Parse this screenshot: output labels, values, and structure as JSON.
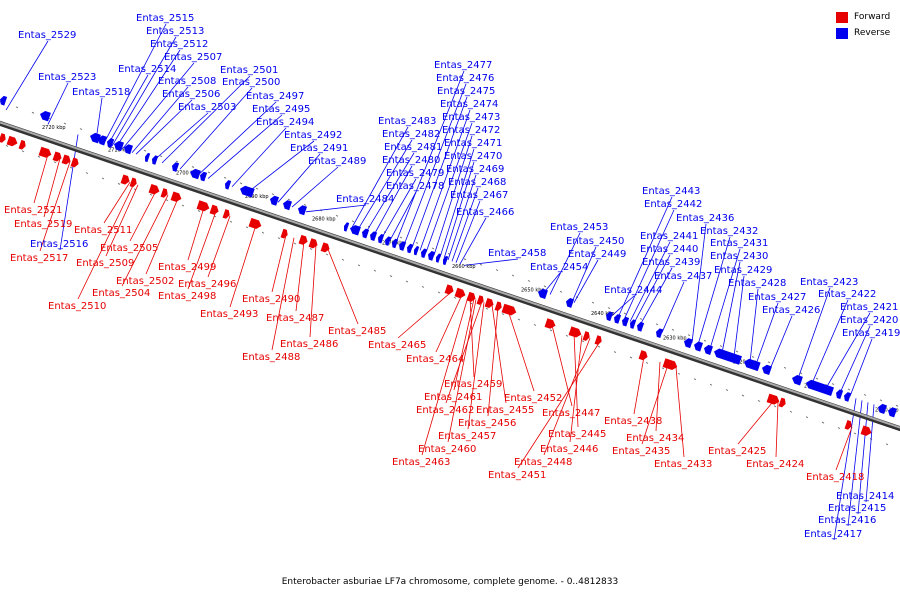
{
  "legend": {
    "forward_label": "Forward",
    "reverse_label": "Reverse",
    "forward_color": "#e60000",
    "reverse_color": "#0000ee"
  },
  "caption": "Enterobacter asburiae LF7a chromosome, complete genome. - 0..4812833",
  "backbone_color": "#777777",
  "ticks": [
    "2720 kbp",
    "2710 kbp",
    "2700 kbp",
    "2690 kbp",
    "2680 kbp",
    "2670 kbp",
    "2660 kbp",
    "2650 kbp",
    "2640 kbp",
    "2630 kbp",
    "2620 kbp",
    "2610 kbp",
    "2600 kbp"
  ],
  "reverse_genes": [
    "Entas_2529",
    "Entas_2523",
    "Entas_2518",
    "Entas_2515",
    "Entas_2514",
    "Entas_2513",
    "Entas_2512",
    "Entas_2508",
    "Entas_2507",
    "Entas_2506",
    "Entas_2503",
    "Entas_2501",
    "Entas_2500",
    "Entas_2497",
    "Entas_2495",
    "Entas_2494",
    "Entas_2492",
    "Entas_2491",
    "Entas_2489",
    "Entas_2484",
    "Entas_2483",
    "Entas_2482",
    "Entas_2481",
    "Entas_2480",
    "Entas_2479",
    "Entas_2478",
    "Entas_2477",
    "Entas_2476",
    "Entas_2475",
    "Entas_2474",
    "Entas_2473",
    "Entas_2472",
    "Entas_2471",
    "Entas_2470",
    "Entas_2469",
    "Entas_2468",
    "Entas_2467",
    "Entas_2466",
    "Entas_2458",
    "Entas_2454",
    "Entas_2453",
    "Entas_2450",
    "Entas_2449",
    "Entas_2444",
    "Entas_2443",
    "Entas_2442",
    "Entas_2441",
    "Entas_2440",
    "Entas_2439",
    "Entas_2437",
    "Entas_2436",
    "Entas_2432",
    "Entas_2431",
    "Entas_2430",
    "Entas_2429",
    "Entas_2428",
    "Entas_2427",
    "Entas_2426",
    "Entas_2423",
    "Entas_2422",
    "Entas_2421",
    "Entas_2420",
    "Entas_2419",
    "Entas_2516",
    "Entas_2414",
    "Entas_2415",
    "Entas_2416",
    "Entas_2417"
  ],
  "forward_genes": [
    "Entas_2521",
    "Entas_2519",
    "Entas_2517",
    "Entas_2511",
    "Entas_2509",
    "Entas_2505",
    "Entas_2504",
    "Entas_2502",
    "Entas_2510",
    "Entas_2499",
    "Entas_2498",
    "Entas_2496",
    "Entas_2493",
    "Entas_2490",
    "Entas_2487",
    "Entas_2486",
    "Entas_2488",
    "Entas_2485",
    "Entas_2465",
    "Entas_2464",
    "Entas_2459",
    "Entas_2461",
    "Entas_2462",
    "Entas_2455",
    "Entas_2452",
    "Entas_2456",
    "Entas_2457",
    "Entas_2460",
    "Entas_2463",
    "Entas_2447",
    "Entas_2445",
    "Entas_2446",
    "Entas_2448",
    "Entas_2451",
    "Entas_2438",
    "Entas_2434",
    "Entas_2435",
    "Entas_2433",
    "Entas_2425",
    "Entas_2424",
    "Entas_2418"
  ]
}
